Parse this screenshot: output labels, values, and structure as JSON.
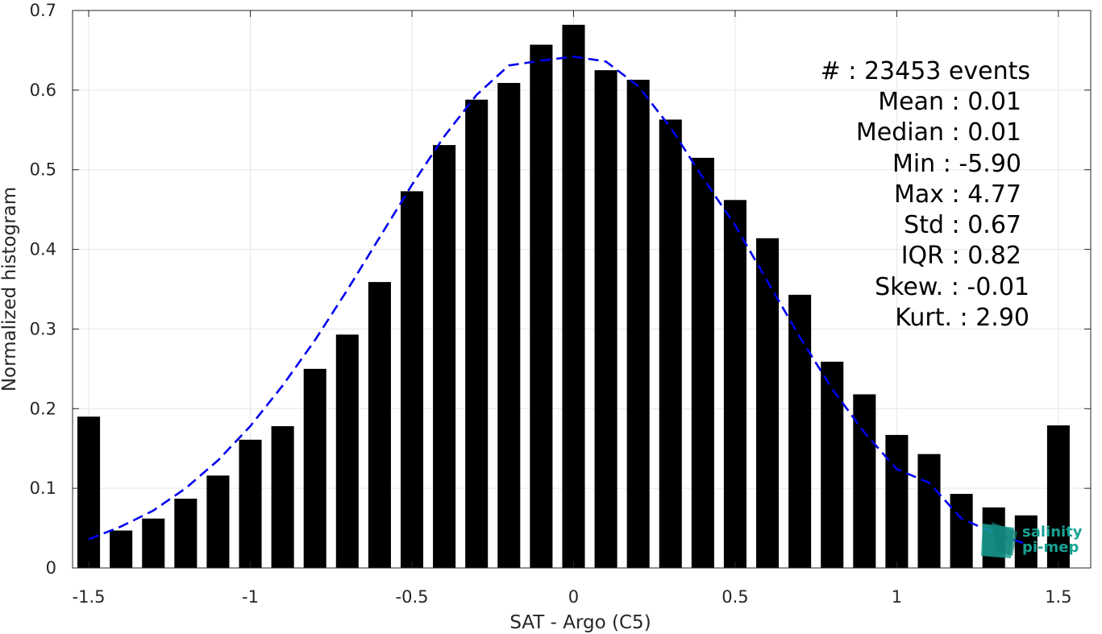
{
  "chart_data": {
    "type": "bar",
    "xlabel": "SAT - Argo (C5)",
    "ylabel": "Normalized histogram",
    "xlim": [
      -1.55,
      1.6
    ],
    "ylim": [
      0,
      0.7
    ],
    "xticks": [
      -1.5,
      -1,
      -0.5,
      0,
      0.5,
      1,
      1.5
    ],
    "xtick_labels": [
      "-1.5",
      "-1",
      "-0.5",
      "0",
      "0.5",
      "1",
      "1.5"
    ],
    "yticks": [
      0,
      0.1,
      0.2,
      0.3,
      0.4,
      0.5,
      0.6,
      0.7
    ],
    "ytick_labels": [
      "0",
      "0.1",
      "0.2",
      "0.3",
      "0.4",
      "0.5",
      "0.6",
      "0.7"
    ],
    "grid": true,
    "bar_color": "#000000",
    "bar_width": 0.07,
    "bars": {
      "x": [
        -1.5,
        -1.4,
        -1.3,
        -1.2,
        -1.1,
        -1.0,
        -0.9,
        -0.8,
        -0.7,
        -0.6,
        -0.5,
        -0.4,
        -0.3,
        -0.2,
        -0.1,
        0.0,
        0.1,
        0.2,
        0.3,
        0.4,
        0.5,
        0.6,
        0.7,
        0.8,
        0.9,
        1.0,
        1.1,
        1.2,
        1.3,
        1.4,
        1.5
      ],
      "values": [
        0.19,
        0.047,
        0.062,
        0.087,
        0.116,
        0.161,
        0.178,
        0.25,
        0.293,
        0.359,
        0.473,
        0.531,
        0.588,
        0.609,
        0.657,
        0.682,
        0.625,
        0.613,
        0.563,
        0.515,
        0.462,
        0.414,
        0.343,
        0.259,
        0.218,
        0.167,
        0.143,
        0.093,
        0.076,
        0.066,
        0.179
      ]
    },
    "fit_curve": {
      "style": "dashed",
      "color": "#0000ee",
      "x": [
        -1.5,
        -1.4,
        -1.3,
        -1.2,
        -1.1,
        -1.0,
        -0.9,
        -0.8,
        -0.7,
        -0.6,
        -0.5,
        -0.4,
        -0.3,
        -0.2,
        -0.1,
        0.0,
        0.1,
        0.2,
        0.3,
        0.4,
        0.5,
        0.6,
        0.7,
        0.8,
        0.9,
        1.0,
        1.1,
        1.2,
        1.3,
        1.4
      ],
      "y": [
        0.036,
        0.052,
        0.072,
        0.1,
        0.135,
        0.178,
        0.229,
        0.286,
        0.349,
        0.415,
        0.481,
        0.542,
        0.594,
        0.631,
        0.637,
        0.642,
        0.636,
        0.605,
        0.553,
        0.49,
        0.43,
        0.36,
        0.29,
        0.225,
        0.17,
        0.124,
        0.107,
        0.062,
        0.044,
        0.03
      ]
    }
  },
  "stats": [
    {
      "text": "#  : 23453 events"
    },
    {
      "text": "Mean : 0.01"
    },
    {
      "text": "Median : 0.01"
    },
    {
      "text": "Min : -5.90"
    },
    {
      "text": "Max : 4.77"
    },
    {
      "text": "Std : 0.67"
    },
    {
      "text": "IQR : 0.82"
    },
    {
      "text": "Skew. : -0.01"
    },
    {
      "text": "Kurt. : 2.90"
    }
  ],
  "logo": {
    "line1": "salinity",
    "line2": "pi-mep",
    "color": "#17a394"
  }
}
